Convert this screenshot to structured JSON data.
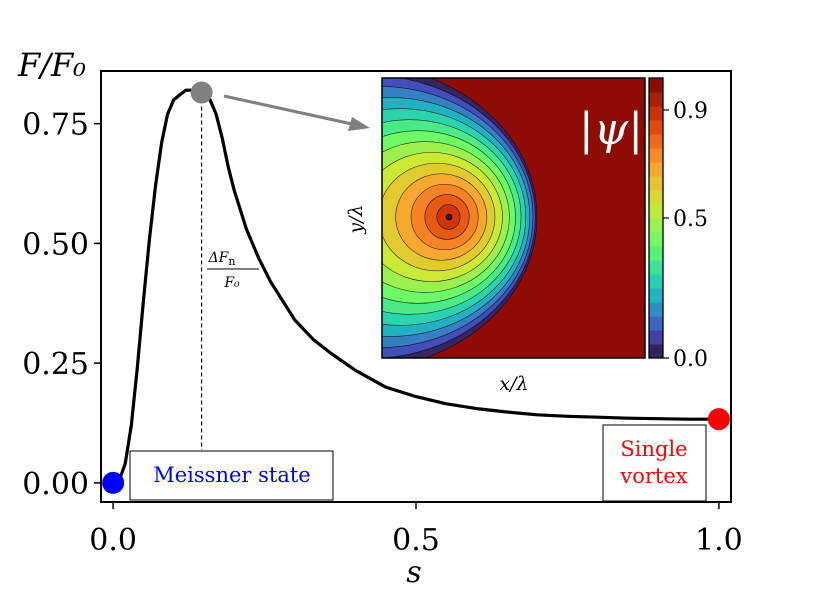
{
  "chart_data": {
    "type": "line",
    "xlabel": "s",
    "ylabel": "F/F₀",
    "xlim": [
      -0.02,
      1.02
    ],
    "ylim": [
      -0.04,
      0.86
    ],
    "xticks": [
      {
        "value": 0.0,
        "label": "0.0"
      },
      {
        "value": 0.5,
        "label": "0.5"
      },
      {
        "value": 1.0,
        "label": "1.0"
      }
    ],
    "yticks": [
      {
        "value": 0.0,
        "label": "0.00"
      },
      {
        "value": 0.25,
        "label": "0.25"
      },
      {
        "value": 0.5,
        "label": "0.50"
      },
      {
        "value": 0.75,
        "label": "0.75"
      }
    ],
    "series": [
      {
        "name": "free energy",
        "color": "#000000",
        "x": [
          0.0,
          0.01,
          0.02,
          0.03,
          0.04,
          0.05,
          0.06,
          0.07,
          0.08,
          0.09,
          0.1,
          0.11,
          0.12,
          0.13,
          0.14,
          0.15,
          0.16,
          0.17,
          0.18,
          0.19,
          0.2,
          0.22,
          0.24,
          0.26,
          0.28,
          0.3,
          0.33,
          0.36,
          0.4,
          0.45,
          0.5,
          0.55,
          0.6,
          0.65,
          0.7,
          0.75,
          0.8,
          0.85,
          0.9,
          0.95,
          1.0
        ],
        "y": [
          0.0,
          0.005,
          0.04,
          0.12,
          0.24,
          0.38,
          0.51,
          0.62,
          0.71,
          0.77,
          0.8,
          0.81,
          0.82,
          0.82,
          0.82,
          0.82,
          0.8,
          0.77,
          0.72,
          0.66,
          0.61,
          0.53,
          0.47,
          0.42,
          0.38,
          0.34,
          0.3,
          0.27,
          0.235,
          0.2,
          0.18,
          0.165,
          0.155,
          0.148,
          0.142,
          0.139,
          0.137,
          0.135,
          0.134,
          0.133,
          0.133
        ]
      }
    ],
    "markers": [
      {
        "name": "meissner-point",
        "x": 0.0,
        "y": 0.0,
        "color": "#0000ff"
      },
      {
        "name": "saddle-point",
        "x": 0.146,
        "y": 0.815,
        "color": "#808080"
      },
      {
        "name": "vortex-point",
        "x": 1.0,
        "y": 0.133,
        "color": "#ff0000"
      }
    ],
    "barrier": {
      "x": 0.146,
      "label_num": "ΔF",
      "label_num_sub": "n",
      "label_den": "F₀"
    },
    "annotations": [
      {
        "name": "meissner-label",
        "text": "Meissner state",
        "color": "#0000ff"
      },
      {
        "name": "vortex-label-line1",
        "text": "Single",
        "color": "#ff0000"
      },
      {
        "name": "vortex-label-line2",
        "text": "vortex",
        "color": "#ff0000"
      }
    ],
    "inset": {
      "type": "heatmap",
      "title": "|ψ|",
      "xlabel": "x/λ",
      "ylabel": "y/λ",
      "colorbar_ticks": [
        {
          "value": 0.9,
          "label": "0.9"
        },
        {
          "value": 0.5,
          "label": "0.5"
        },
        {
          "value": 0.0,
          "label": "0.0"
        }
      ],
      "colorbar_range": [
        0.0,
        1.0
      ]
    }
  }
}
